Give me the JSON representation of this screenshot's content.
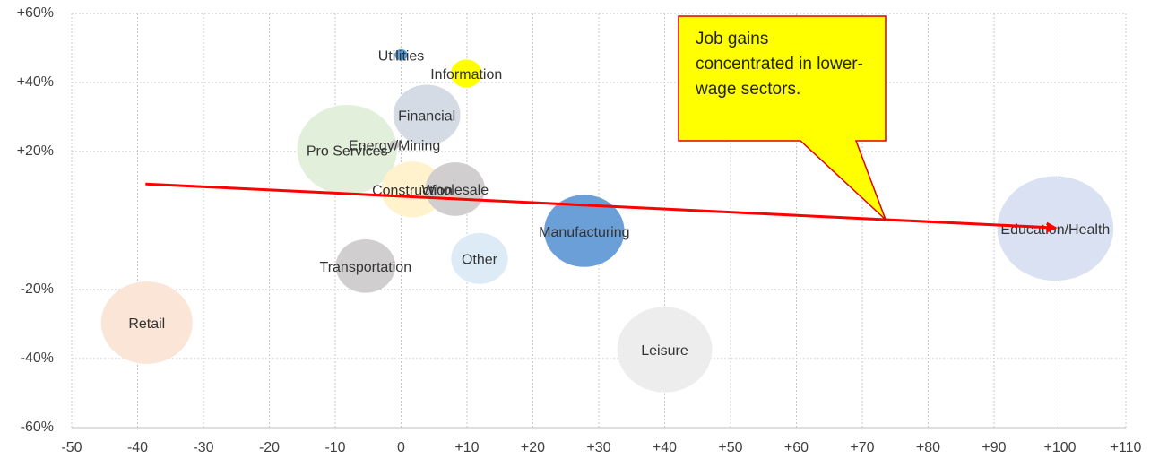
{
  "chart_data": {
    "type": "bubble",
    "xlim": [
      -50,
      110
    ],
    "xticks": [
      -50,
      -40,
      -30,
      -20,
      -10,
      0,
      {
        "value": 10,
        "label": "+10"
      },
      {
        "value": 20,
        "label": "+20"
      },
      {
        "value": 30,
        "label": "+30"
      },
      {
        "value": 40,
        "label": "+40"
      },
      {
        "value": 50,
        "label": "+50"
      },
      {
        "value": 60,
        "label": "+60"
      },
      {
        "value": 70,
        "label": "+70"
      },
      {
        "value": 80,
        "label": "+80"
      },
      {
        "value": 90,
        "label": "+90"
      },
      {
        "value": 100,
        "label": "+100"
      },
      {
        "value": 110,
        "label": "+110"
      }
    ],
    "ylim": [
      -60,
      60
    ],
    "yticks": [
      {
        "value": -60,
        "label": "-60%"
      },
      {
        "value": -40,
        "label": "-40%"
      },
      {
        "value": -20,
        "label": "-20%"
      },
      {
        "value": 20,
        "label": "+20%"
      },
      {
        "value": 40,
        "label": "+40%"
      },
      {
        "value": 60,
        "label": "+60%"
      }
    ],
    "grid": true,
    "points": [
      {
        "label": "Education/Health",
        "x": 99.3,
        "y": -2.3,
        "size": 42,
        "color": "#d9e1f2"
      },
      {
        "label": "Pro Services",
        "x": -8.2,
        "y": 20.5,
        "size": 31,
        "color": "#e2efda"
      },
      {
        "label": "Leisure",
        "x": 40,
        "y": -37.4,
        "size": 28,
        "color": "#ededed"
      },
      {
        "label": "Retail",
        "x": -38.6,
        "y": -29.6,
        "size": 26,
        "color": "#fbe5d6"
      },
      {
        "label": "Manufacturing",
        "x": 27.8,
        "y": -3,
        "size": 20,
        "color": "#6a9fd8"
      },
      {
        "label": "Financial",
        "x": 3.9,
        "y": 30.6,
        "size": 14,
        "color": "#d5dbe5"
      },
      {
        "label": "Construction",
        "x": 1.7,
        "y": 9,
        "size": 12,
        "color": "#fff2cc"
      },
      {
        "label": "Wholesale",
        "x": 8.2,
        "y": 9.1,
        "size": 11,
        "color": "#d0cece"
      },
      {
        "label": "Transportation",
        "x": -5.4,
        "y": -13.2,
        "size": 11,
        "color": "#d0cece"
      },
      {
        "label": "Other",
        "x": 11.9,
        "y": -11,
        "size": 10,
        "color": "#ddebf7"
      },
      {
        "label": "Information",
        "x": 9.9,
        "y": 42.6,
        "size": 3,
        "color": "#ffff00"
      },
      {
        "label": "Utilities",
        "x": 0,
        "y": 48,
        "size": 0.5,
        "color": "#5b9bd5"
      },
      {
        "label": "Energy/Mining",
        "x": -1,
        "y": 22,
        "size": 0.3,
        "color": "#c9c9c9"
      }
    ],
    "trendline": {
      "x": [
        -38.8,
        99.3
      ],
      "y": [
        10.6,
        -2.1
      ],
      "color": "#ff0000"
    },
    "annotation": "Job gains concentrated in lower-wage sectors."
  }
}
